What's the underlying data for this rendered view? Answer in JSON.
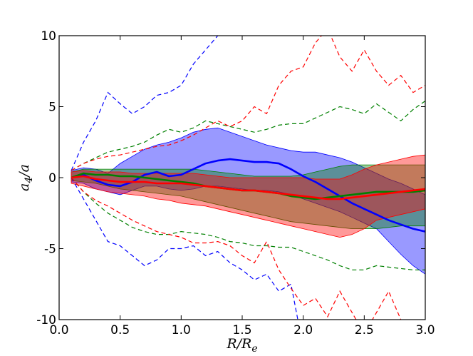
{
  "chart_data": {
    "type": "line",
    "title": "",
    "xlabel": "R/R_e",
    "ylabel": "a_4/a",
    "xlim": [
      0.0,
      3.0
    ],
    "ylim": [
      -10,
      10
    ],
    "xticks": [
      "0.0",
      "0.5",
      "1.0",
      "1.5",
      "2.0",
      "2.5",
      "3.0"
    ],
    "yticks": [
      "10",
      "5",
      "0",
      "-5",
      "-10"
    ],
    "grid": false,
    "legend": "none",
    "series": [
      {
        "color": "#0000ff",
        "x": [
          0.1,
          0.2,
          0.3,
          0.4,
          0.5,
          0.6,
          0.7,
          0.8,
          0.9,
          1.0,
          1.1,
          1.2,
          1.3,
          1.4,
          1.5,
          1.6,
          1.7,
          1.8,
          1.9,
          2.0,
          2.1,
          2.2,
          2.3,
          2.4,
          2.5,
          2.6,
          2.7,
          2.8,
          2.9,
          3.0
        ],
        "median": [
          0.0,
          0.2,
          -0.2,
          -0.5,
          -0.6,
          -0.3,
          0.2,
          0.4,
          0.1,
          0.2,
          0.6,
          1.0,
          1.2,
          1.3,
          1.2,
          1.1,
          1.1,
          1.0,
          0.6,
          0.1,
          -0.3,
          -0.8,
          -1.3,
          -1.8,
          -2.2,
          -2.6,
          -3.0,
          -3.3,
          -3.6,
          -3.8
        ],
        "band_low": [
          -0.3,
          -0.4,
          -0.8,
          -1.0,
          -1.2,
          -0.9,
          -0.6,
          -0.6,
          -0.8,
          -0.9,
          -0.8,
          -0.6,
          -0.6,
          -0.7,
          -0.8,
          -0.9,
          -0.9,
          -1.0,
          -1.2,
          -1.5,
          -1.8,
          -2.1,
          -2.4,
          -2.8,
          -3.2,
          -3.6,
          -4.5,
          -5.4,
          -6.2,
          -6.8
        ],
        "band_high": [
          0.5,
          0.7,
          0.6,
          0.3,
          1.0,
          1.5,
          2.0,
          2.3,
          2.5,
          2.8,
          3.2,
          3.4,
          3.5,
          3.2,
          2.9,
          2.6,
          2.3,
          2.1,
          1.9,
          1.8,
          1.8,
          1.6,
          1.4,
          1.1,
          0.7,
          0.3,
          -0.1,
          -0.4,
          -0.8,
          -1.2
        ],
        "env_low": [
          0.0,
          -1.5,
          -3.0,
          -4.5,
          -4.8,
          -5.5,
          -6.2,
          -5.8,
          -5.0,
          -5.0,
          -4.8,
          -5.5,
          -5.2,
          -6.0,
          -6.5,
          -7.2,
          -6.8,
          -8.0,
          -7.5,
          -12.0
        ],
        "env_high": [
          0.5,
          2.5,
          4.0,
          6.0,
          5.2,
          4.5,
          5.0,
          5.8,
          6.0,
          6.5,
          8.0,
          9.0,
          10.0,
          11.5,
          13.0,
          14.0,
          15.0,
          15.5,
          16.0,
          17.0
        ],
        "env_x": [
          0.1,
          0.2,
          0.3,
          0.4,
          0.5,
          0.6,
          0.7,
          0.8,
          0.9,
          1.0,
          1.1,
          1.2,
          1.3,
          1.4,
          1.5,
          1.6,
          1.7,
          1.8,
          1.9,
          2.0
        ]
      },
      {
        "color": "#008000",
        "x": [
          0.1,
          0.2,
          0.3,
          0.4,
          0.5,
          0.6,
          0.7,
          0.8,
          0.9,
          1.0,
          1.1,
          1.2,
          1.3,
          1.4,
          1.5,
          1.6,
          1.7,
          1.8,
          1.9,
          2.0,
          2.1,
          2.2,
          2.3,
          2.4,
          2.5,
          2.6,
          2.7,
          2.8,
          2.9,
          3.0
        ],
        "median": [
          0.0,
          0.3,
          0.2,
          0.2,
          0.1,
          0.1,
          0.0,
          -0.1,
          -0.2,
          -0.3,
          -0.4,
          -0.6,
          -0.7,
          -0.8,
          -0.9,
          -0.9,
          -1.0,
          -1.1,
          -1.3,
          -1.4,
          -1.5,
          -1.4,
          -1.3,
          -1.2,
          -1.1,
          -1.0,
          -1.0,
          -1.0,
          -1.0,
          -0.9
        ],
        "band_low": [
          -0.2,
          -0.3,
          -0.4,
          -0.6,
          -0.8,
          -0.9,
          -1.0,
          -1.1,
          -1.2,
          -1.3,
          -1.5,
          -1.7,
          -1.9,
          -2.1,
          -2.3,
          -2.5,
          -2.7,
          -2.9,
          -3.1,
          -3.2,
          -3.3,
          -3.4,
          -3.5,
          -3.6,
          -3.6,
          -3.6,
          -3.5,
          -3.4,
          -3.4,
          -3.4
        ],
        "band_high": [
          0.4,
          0.6,
          0.6,
          0.6,
          0.6,
          0.6,
          0.6,
          0.6,
          0.6,
          0.6,
          0.6,
          0.5,
          0.4,
          0.3,
          0.2,
          0.1,
          0.1,
          0.1,
          0.1,
          0.2,
          0.4,
          0.6,
          0.8,
          0.9,
          0.9,
          0.9,
          0.9,
          0.9,
          0.9,
          0.9
        ],
        "env_low": [
          0.0,
          -1.0,
          -1.8,
          -2.5,
          -3.0,
          -3.5,
          -3.8,
          -4.0,
          -4.0,
          -3.8,
          -3.9,
          -4.0,
          -4.2,
          -4.5,
          -4.6,
          -4.8,
          -4.8,
          -4.9,
          -4.9,
          -5.2,
          -5.5,
          -5.8,
          -6.2,
          -6.5,
          -6.5,
          -6.2,
          -6.3,
          -6.4,
          -6.5,
          -6.5
        ],
        "env_high": [
          0.5,
          1.0,
          1.4,
          1.8,
          2.0,
          2.2,
          2.5,
          3.0,
          3.4,
          3.2,
          3.5,
          4.0,
          3.8,
          3.6,
          3.4,
          3.2,
          3.4,
          3.7,
          3.8,
          3.8,
          4.2,
          4.6,
          5.0,
          4.8,
          4.5,
          5.2,
          4.6,
          4.0,
          4.8,
          5.4
        ],
        "env_x": [
          0.1,
          0.2,
          0.3,
          0.4,
          0.5,
          0.6,
          0.7,
          0.8,
          0.9,
          1.0,
          1.1,
          1.2,
          1.3,
          1.4,
          1.5,
          1.6,
          1.7,
          1.8,
          1.9,
          2.0,
          2.1,
          2.2,
          2.3,
          2.4,
          2.5,
          2.6,
          2.7,
          2.8,
          2.9,
          3.0
        ]
      },
      {
        "color": "#ff0000",
        "x": [
          0.1,
          0.2,
          0.3,
          0.4,
          0.5,
          0.6,
          0.7,
          0.8,
          0.9,
          1.0,
          1.1,
          1.2,
          1.3,
          1.4,
          1.5,
          1.6,
          1.7,
          1.8,
          1.9,
          2.0,
          2.1,
          2.2,
          2.3,
          2.4,
          2.5,
          2.6,
          2.7,
          2.8,
          2.9,
          3.0
        ],
        "median": [
          0.0,
          0.1,
          -0.1,
          -0.2,
          -0.3,
          -0.3,
          -0.3,
          -0.4,
          -0.4,
          -0.4,
          -0.5,
          -0.6,
          -0.7,
          -0.8,
          -0.9,
          -0.9,
          -1.0,
          -1.1,
          -1.2,
          -1.3,
          -1.4,
          -1.5,
          -1.5,
          -1.4,
          -1.3,
          -1.2,
          -1.1,
          -1.0,
          -0.9,
          -0.8
        ],
        "band_low": [
          -0.4,
          -0.6,
          -0.8,
          -1.0,
          -1.1,
          -1.2,
          -1.3,
          -1.5,
          -1.6,
          -1.8,
          -1.9,
          -2.0,
          -2.2,
          -2.4,
          -2.6,
          -2.8,
          -3.0,
          -3.2,
          -3.4,
          -3.6,
          -3.8,
          -4.0,
          -4.2,
          -4.0,
          -3.6,
          -3.0,
          -2.8,
          -2.6,
          -2.4,
          -2.2
        ],
        "band_high": [
          0.4,
          0.5,
          0.4,
          0.4,
          0.4,
          0.3,
          0.3,
          0.3,
          0.3,
          0.3,
          0.3,
          0.2,
          0.1,
          0.0,
          0.0,
          0.0,
          0.0,
          0.0,
          0.0,
          0.0,
          -0.1,
          -0.1,
          -0.1,
          0.2,
          0.6,
          0.9,
          1.1,
          1.3,
          1.5,
          1.6
        ],
        "env_low": [
          0.0,
          -1.0,
          -1.6,
          -2.0,
          -2.5,
          -3.0,
          -3.4,
          -3.8,
          -4.0,
          -4.2,
          -4.6,
          -4.6,
          -4.5,
          -4.8,
          -5.5,
          -6.0,
          -4.5,
          -6.5,
          -7.8,
          -9.0,
          -8.5,
          -9.8,
          -8.0,
          -9.5,
          -11.0,
          -9.5,
          -8.0,
          -10.0,
          -12.0,
          -10.5
        ],
        "env_high": [
          0.5,
          1.0,
          1.3,
          1.5,
          1.6,
          1.8,
          2.0,
          2.2,
          2.3,
          2.6,
          3.0,
          3.5,
          4.0,
          3.6,
          4.0,
          5.0,
          4.5,
          6.5,
          7.5,
          7.8,
          9.5,
          10.5,
          8.5,
          7.5,
          9.0,
          7.5,
          6.5,
          7.2,
          6.0,
          6.5
        ],
        "env_x": [
          0.1,
          0.2,
          0.3,
          0.4,
          0.5,
          0.6,
          0.7,
          0.8,
          0.9,
          1.0,
          1.1,
          1.2,
          1.3,
          1.4,
          1.5,
          1.6,
          1.7,
          1.8,
          1.9,
          2.0,
          2.1,
          2.2,
          2.3,
          2.4,
          2.5,
          2.6,
          2.7,
          2.8,
          2.9,
          3.0
        ]
      }
    ]
  }
}
